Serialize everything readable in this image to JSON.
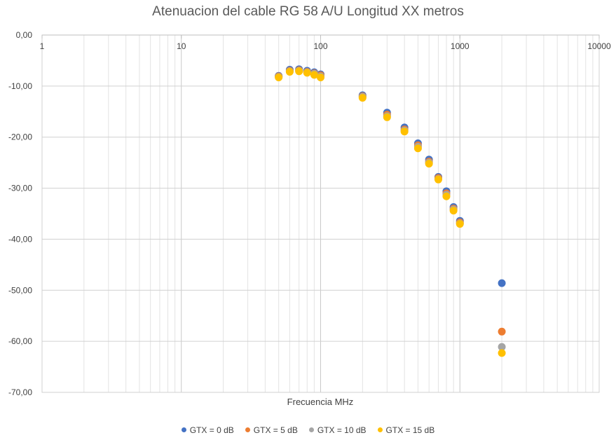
{
  "chart_data": {
    "type": "scatter",
    "title": "Atenuacion del cable RG 58 A/U Longitud XX metros",
    "xlabel": "Frecuencia MHz",
    "ylabel": "",
    "xscale": "log",
    "xlim": [
      1,
      10000
    ],
    "ylim": [
      -70,
      0
    ],
    "x_ticks": [
      1,
      10,
      100,
      1000,
      10000
    ],
    "x_tick_labels": [
      "1",
      "10",
      "100",
      "1000",
      "10000"
    ],
    "y_ticks": [
      0,
      -10,
      -20,
      -30,
      -40,
      -50,
      -60,
      -70
    ],
    "y_tick_labels": [
      "0,00",
      "-10,00",
      "-20,00",
      "-30,00",
      "-40,00",
      "-50,00",
      "-60,00",
      "-70,00"
    ],
    "x_axis_position": "top",
    "grid": true,
    "legend_position": "bottom",
    "series": [
      {
        "name": "GTX = 0 dB",
        "color": "#4472C4",
        "points": [
          [
            50,
            -8.0
          ],
          [
            60,
            -6.8
          ],
          [
            70,
            -6.7
          ],
          [
            80,
            -7.0
          ],
          [
            90,
            -7.3
          ],
          [
            100,
            -7.7
          ],
          [
            200,
            -11.8
          ],
          [
            300,
            -15.2
          ],
          [
            400,
            -18.1
          ],
          [
            500,
            -21.2
          ],
          [
            600,
            -24.4
          ],
          [
            700,
            -27.8
          ],
          [
            800,
            -30.6
          ],
          [
            900,
            -33.7
          ],
          [
            1000,
            -36.4
          ],
          [
            2000,
            -48.6
          ]
        ]
      },
      {
        "name": "GTX = 5 dB",
        "color": "#ED7D31",
        "points": [
          [
            50,
            -8.1
          ],
          [
            60,
            -7.0
          ],
          [
            70,
            -6.9
          ],
          [
            80,
            -7.2
          ],
          [
            90,
            -7.5
          ],
          [
            100,
            -7.9
          ],
          [
            200,
            -12.0
          ],
          [
            300,
            -15.6
          ],
          [
            400,
            -18.5
          ],
          [
            500,
            -21.6
          ],
          [
            600,
            -24.8
          ],
          [
            700,
            -28.0
          ],
          [
            800,
            -31.0
          ],
          [
            900,
            -34.0
          ],
          [
            1000,
            -36.7
          ],
          [
            2000,
            -58.1
          ]
        ]
      },
      {
        "name": "GTX = 10 dB",
        "color": "#A5A5A5",
        "points": [
          [
            50,
            -8.2
          ],
          [
            60,
            -7.1
          ],
          [
            70,
            -7.0
          ],
          [
            80,
            -7.3
          ],
          [
            90,
            -7.6
          ],
          [
            100,
            -8.1
          ],
          [
            200,
            -12.1
          ],
          [
            300,
            -15.9
          ],
          [
            400,
            -18.7
          ],
          [
            500,
            -21.9
          ],
          [
            600,
            -25.0
          ],
          [
            700,
            -28.2
          ],
          [
            800,
            -31.3
          ],
          [
            900,
            -34.2
          ],
          [
            1000,
            -36.9
          ],
          [
            2000,
            -61.1
          ]
        ]
      },
      {
        "name": "GTX = 15 dB",
        "color": "#FFC000",
        "points": [
          [
            50,
            -8.3
          ],
          [
            60,
            -7.2
          ],
          [
            70,
            -7.1
          ],
          [
            80,
            -7.4
          ],
          [
            90,
            -7.8
          ],
          [
            100,
            -8.3
          ],
          [
            200,
            -12.3
          ],
          [
            300,
            -16.1
          ],
          [
            400,
            -18.9
          ],
          [
            500,
            -22.2
          ],
          [
            600,
            -25.2
          ],
          [
            700,
            -28.3
          ],
          [
            800,
            -31.6
          ],
          [
            900,
            -34.4
          ],
          [
            1000,
            -37.0
          ],
          [
            2000,
            -62.3
          ]
        ]
      }
    ]
  }
}
